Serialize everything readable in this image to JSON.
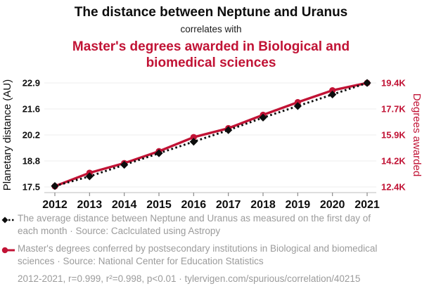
{
  "header": {
    "title": "The distance between Neptune and Uranus",
    "connector": "correlates with",
    "subtitle": "Master's degrees awarded in Biological and biomedical sciences"
  },
  "colors": {
    "red": "#c11335",
    "black": "#0d0d0d",
    "gray_text": "#9b9b9b",
    "grid": "#ececec",
    "axis_line": "#c9c9c9",
    "tick_mark": "#8a8a8a"
  },
  "chart_data": {
    "type": "line",
    "x": [
      "2012",
      "2013",
      "2014",
      "2015",
      "2016",
      "2017",
      "2018",
      "2019",
      "2020",
      "2021"
    ],
    "series": [
      {
        "name": "Masters degrees awarded (right axis, thousands)",
        "axis": "right",
        "style": "solid-circle",
        "color": "#c11335",
        "values": [
          12.45,
          13.35,
          14.0,
          14.8,
          15.75,
          16.35,
          17.25,
          18.1,
          18.9,
          19.4
        ]
      },
      {
        "name": "Neptune-Uranus distance (left axis, AU)",
        "axis": "left",
        "style": "dotted-diamond",
        "color": "#0d0d0d",
        "values": [
          17.55,
          18.05,
          18.65,
          19.25,
          19.85,
          20.45,
          21.1,
          21.7,
          22.3,
          22.9
        ]
      }
    ],
    "left_axis": {
      "label": "Planetary distance (AU)",
      "range": [
        17.5,
        22.9
      ],
      "tick_labels": [
        "17.5",
        "18.8",
        "20.2",
        "21.6",
        "22.9"
      ],
      "color": "#0d0d0d"
    },
    "right_axis": {
      "label": "Degrees awarded",
      "range": [
        12.4,
        19.4
      ],
      "tick_labels": [
        "12.4K",
        "14.2K",
        "15.9K",
        "17.7K",
        "19.4K"
      ],
      "color": "#c11335"
    },
    "grid": true,
    "legend_position": "bottom"
  },
  "legend": {
    "items": [
      {
        "marker": "black-diamond-dotted",
        "label": "The average distance between Neptune and Uranus as measured on the first day of each month · Source: Caclculated using Astropy"
      },
      {
        "marker": "red-circle-solid",
        "label": "Master's degrees conferred by postsecondary institutions in Biological and biomedical sciences · Source: National Center for Education Statistics"
      }
    ],
    "footer": "2012-2021, r=0.999, r²=0.998, p<0.01 · tylervigen.com/spurious/correlation/40215"
  }
}
